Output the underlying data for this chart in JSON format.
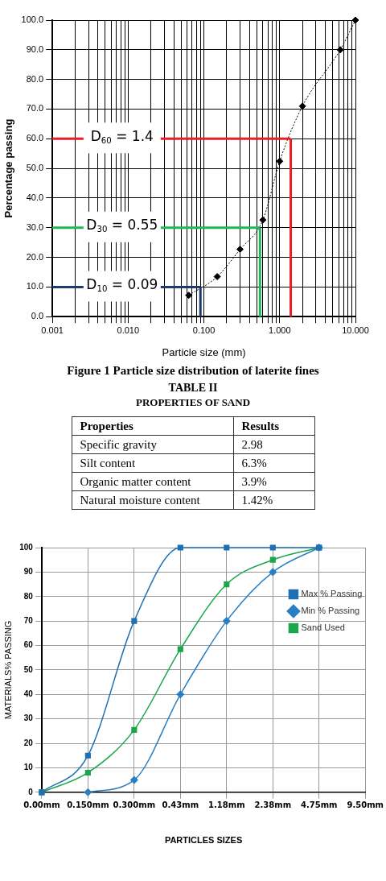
{
  "chart_data": [
    {
      "type": "line",
      "xlabel": "Particle size (mm)",
      "ylabel": "Percentage passing",
      "log": "x",
      "grid": true,
      "legend": false,
      "marker": "diamond",
      "line_style": "dotted",
      "x": [
        0.063,
        0.15,
        0.3,
        0.6,
        1.0,
        2.0,
        6.3,
        10
      ],
      "series": [
        {
          "color": "#000000",
          "values": [
            7.2,
            13.5,
            22.7,
            32.6,
            52.4,
            71.0,
            90.0,
            100.0
          ]
        }
      ],
      "xlim": [
        0.001,
        10
      ],
      "ylim": [
        0,
        100
      ],
      "xticks": [
        {
          "value": 0.001,
          "label": "0.001"
        },
        {
          "value": 0.002,
          "label": null
        },
        {
          "value": 0.003,
          "label": null
        },
        {
          "value": 0.004,
          "label": null
        },
        {
          "value": 0.005,
          "label": null
        },
        {
          "value": 0.006,
          "label": null
        },
        {
          "value": 0.007,
          "label": null
        },
        {
          "value": 0.008,
          "label": null
        },
        {
          "value": 0.009,
          "label": null
        },
        {
          "value": 0.01,
          "label": "0.010"
        },
        {
          "value": 0.02,
          "label": null
        },
        {
          "value": 0.03,
          "label": null
        },
        {
          "value": 0.04,
          "label": null
        },
        {
          "value": 0.05,
          "label": null
        },
        {
          "value": 0.06,
          "label": null
        },
        {
          "value": 0.07,
          "label": null
        },
        {
          "value": 0.08,
          "label": null
        },
        {
          "value": 0.09,
          "label": null
        },
        {
          "value": 0.1,
          "label": "0.100"
        },
        {
          "value": 0.2,
          "label": null
        },
        {
          "value": 0.3,
          "label": null
        },
        {
          "value": 0.4,
          "label": null
        },
        {
          "value": 0.5,
          "label": null
        },
        {
          "value": 0.6,
          "label": null
        },
        {
          "value": 0.7,
          "label": null
        },
        {
          "value": 0.8,
          "label": null
        },
        {
          "value": 0.9,
          "label": null
        },
        {
          "value": 1,
          "label": "1.000"
        },
        {
          "value": 2,
          "label": null
        },
        {
          "value": 3,
          "label": null
        },
        {
          "value": 4,
          "label": null
        },
        {
          "value": 5,
          "label": null
        },
        {
          "value": 6,
          "label": null
        },
        {
          "value": 7,
          "label": null
        },
        {
          "value": 8,
          "label": null
        },
        {
          "value": 9,
          "label": null
        },
        {
          "value": 10,
          "label": "10.000"
        }
      ],
      "yticks": [
        {
          "value": 0,
          "label": "0.0"
        },
        {
          "value": 10,
          "label": "10.0"
        },
        {
          "value": 20,
          "label": "20.0"
        },
        {
          "value": 30,
          "label": "30.0"
        },
        {
          "value": 40,
          "label": "40.0"
        },
        {
          "value": 50,
          "label": "50.0"
        },
        {
          "value": 60,
          "label": "60.0"
        },
        {
          "value": 70,
          "label": "70.0"
        },
        {
          "value": 80,
          "label": "80.0"
        },
        {
          "value": 90,
          "label": "90.0"
        },
        {
          "value": 100,
          "label": "100.0"
        }
      ],
      "ref_lines": [
        {
          "axis": "y",
          "value": 60,
          "label": "D$_{60}$ = 1.4",
          "color": "#ee1c25"
        },
        {
          "axis": "x",
          "value": 1.4,
          "color": "#ee1c25"
        },
        {
          "axis": "y",
          "value": 30,
          "label": "D$_{30}$ = 0.55",
          "color": "#1db954"
        },
        {
          "axis": "x",
          "value": 0.55,
          "color": "#1db954"
        },
        {
          "axis": "y",
          "value": 10,
          "label": "D$_{10}$ = 0.09",
          "color": "#1f3a6e"
        },
        {
          "axis": "x",
          "value": 0.09,
          "color": "#1f3a6e"
        }
      ],
      "annotations": [
        "Figure 1 Particle size distribution of laterite fines"
      ]
    },
    {
      "type": "other",
      "title": "TABLE II",
      "subtitle": "PROPERTIES OF SAND",
      "annotations": [
        "Properties",
        "Results",
        "Specific gravity",
        "2.98",
        "Silt content",
        "6.3%",
        "Organic matter content",
        "3.9%",
        "Natural moisture content",
        "1.42%"
      ]
    },
    {
      "type": "line",
      "xlabel": "PARTICLES SIZES",
      "ylabel": "MATERIALS% PASSING",
      "grid": true,
      "legend": "right",
      "categories": [
        "0.00mm",
        "0.150mm",
        "0.300mm",
        "0.43mm",
        "1.18mm",
        "2.38mm",
        "4.75mm",
        "9.50mm"
      ],
      "series": [
        {
          "name": "Max % Passing",
          "color": "#1f6fb5",
          "marker": "square",
          "values": [
            0,
            15,
            70,
            100,
            100,
            100,
            100,
            null
          ]
        },
        {
          "name": "Min % Passing",
          "color": "#2a7fc4",
          "marker": "diamond",
          "values": [
            null,
            0,
            5,
            40,
            70,
            90,
            100,
            null
          ]
        },
        {
          "name": "Sand Used",
          "color": "#1aa64a",
          "marker": "square",
          "values": [
            0,
            8,
            25.5,
            58.5,
            85,
            95,
            100,
            null
          ]
        }
      ],
      "ylim": [
        0,
        100
      ],
      "yticks": [
        0,
        10,
        20,
        30,
        40,
        50,
        60,
        70,
        80,
        90,
        100
      ]
    }
  ]
}
